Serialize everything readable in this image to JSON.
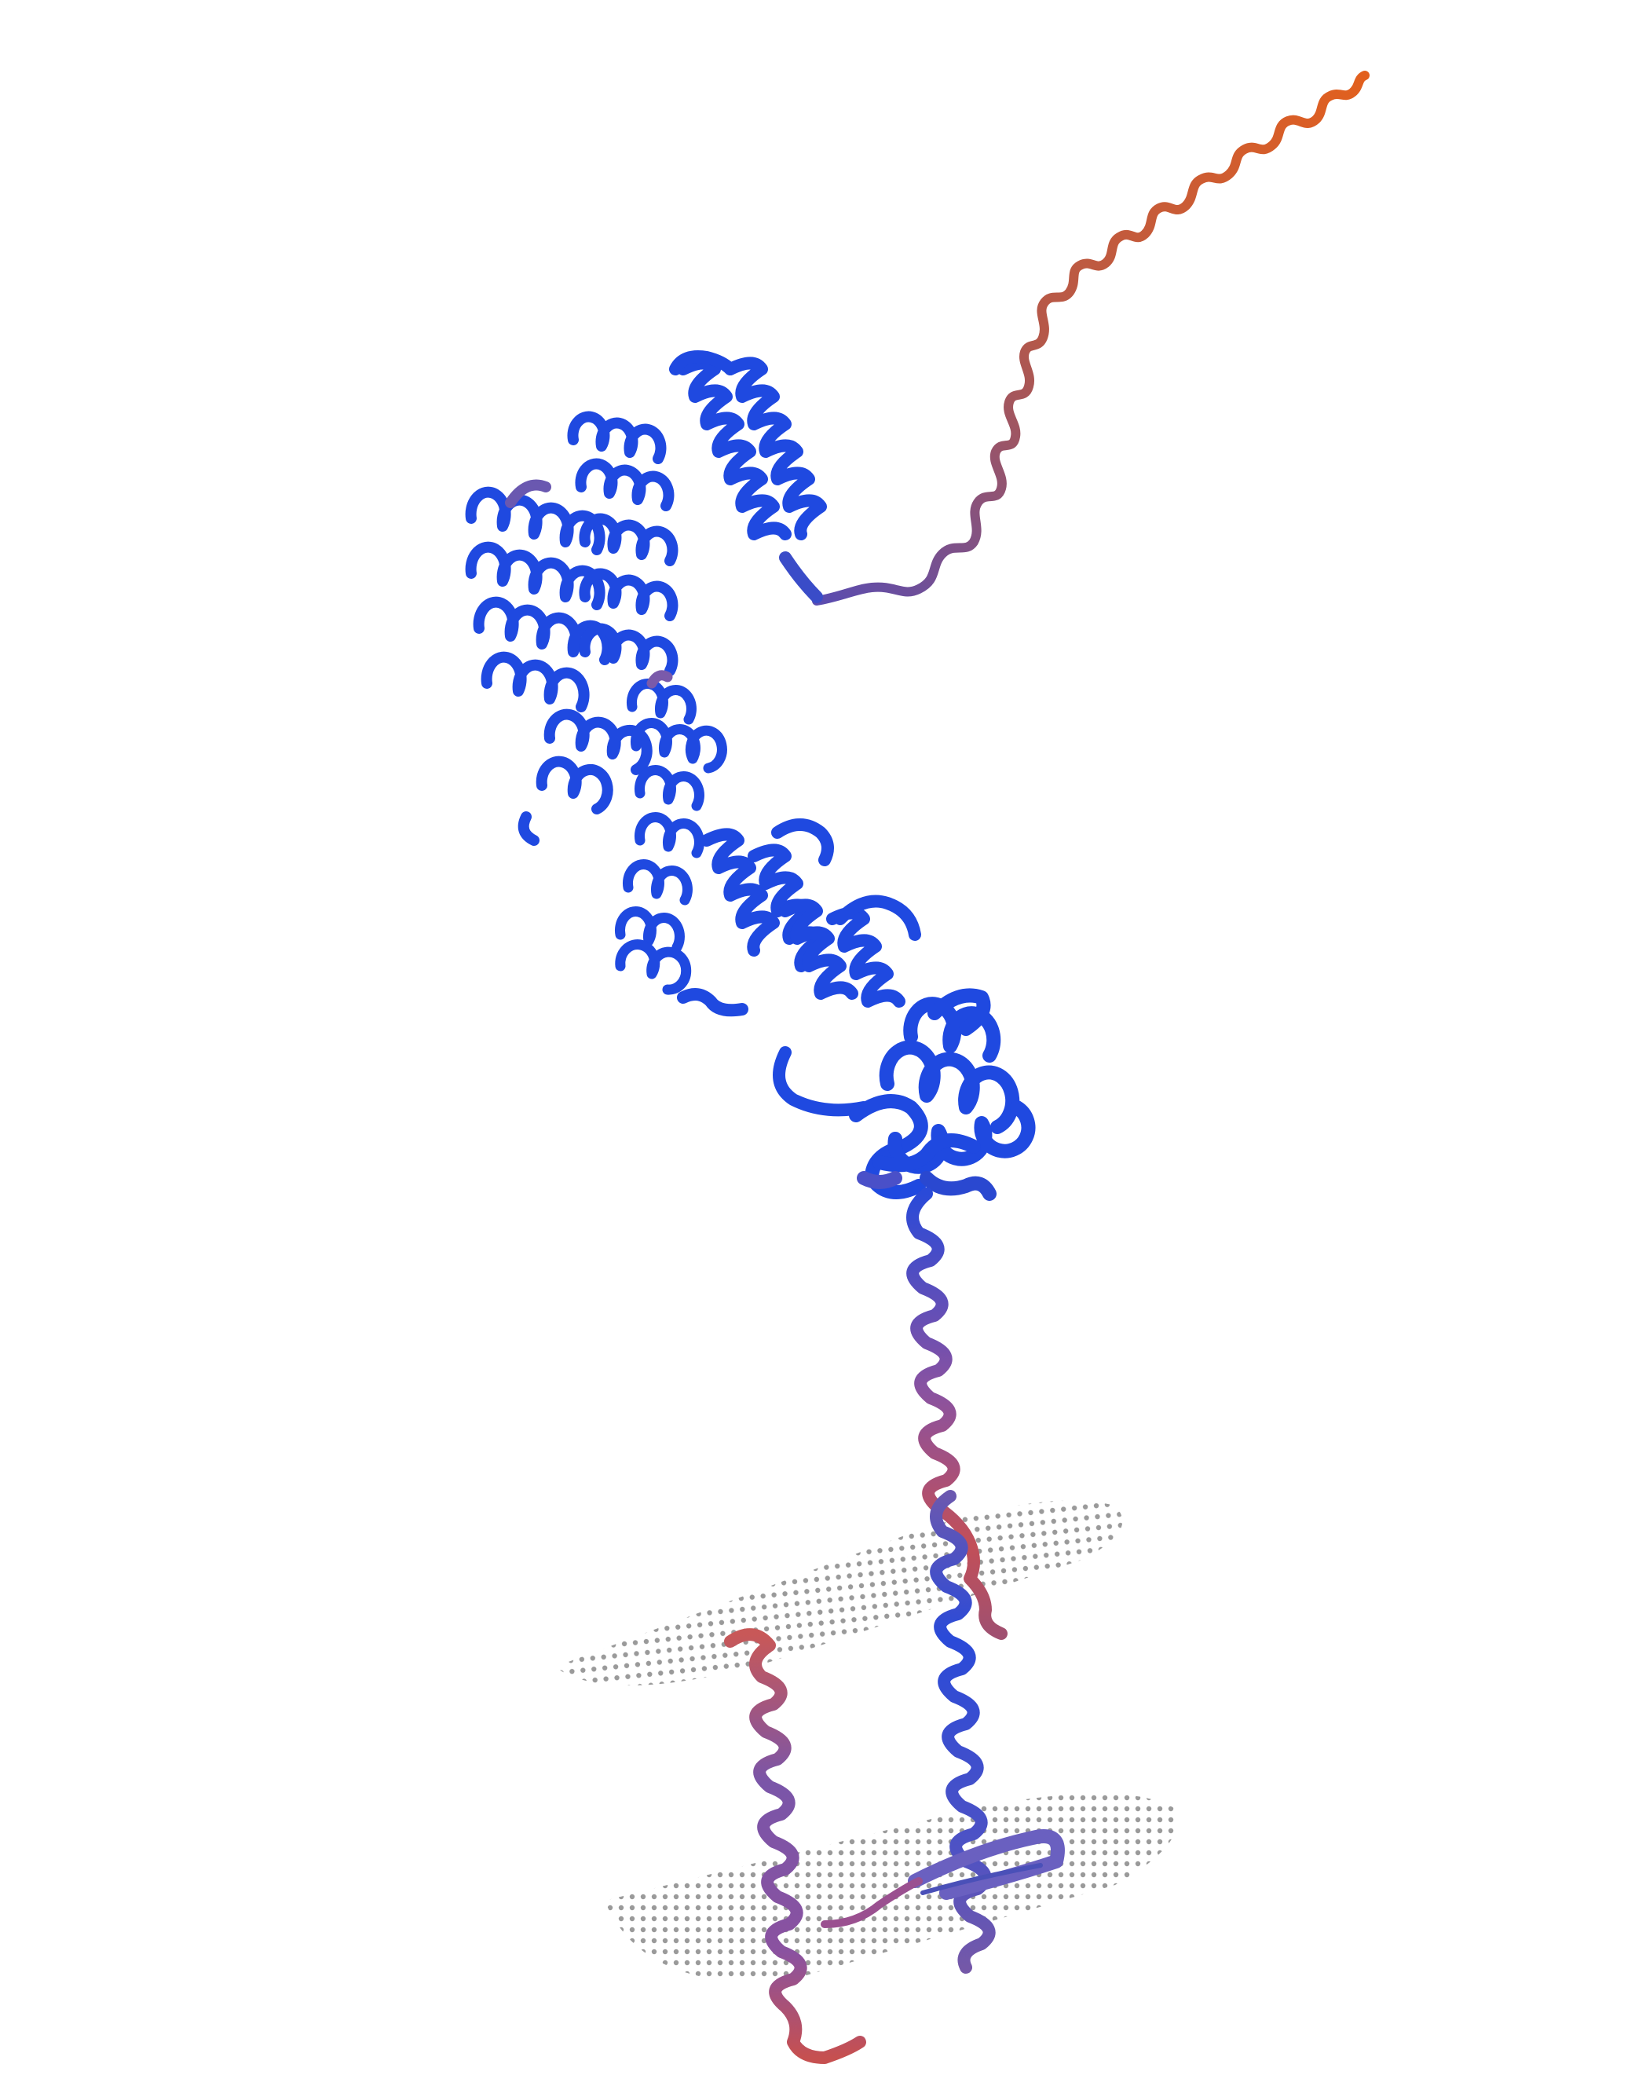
{
  "image": {
    "subject": "protein-ribbon-structure",
    "background": "#ffffff",
    "palette": {
      "helix_blue": "#1f49e0",
      "helix_blue_dark": "#1434b0",
      "transition_purple": "#6a58b8",
      "membrane_red": "#c2505c",
      "coil_orange": "#e0602a",
      "membrane_dots": "#9a9a9a"
    },
    "elements": [
      "disordered-tail",
      "upper-helix-bundle",
      "left-helical-repeats",
      "middle-helix-stack",
      "middle-helix-domain",
      "globular-domain",
      "linker-helix",
      "transmembrane-helix-right",
      "transmembrane-helix-left",
      "beta-hairpin",
      "membrane-plane-upper",
      "membrane-plane-lower"
    ]
  }
}
